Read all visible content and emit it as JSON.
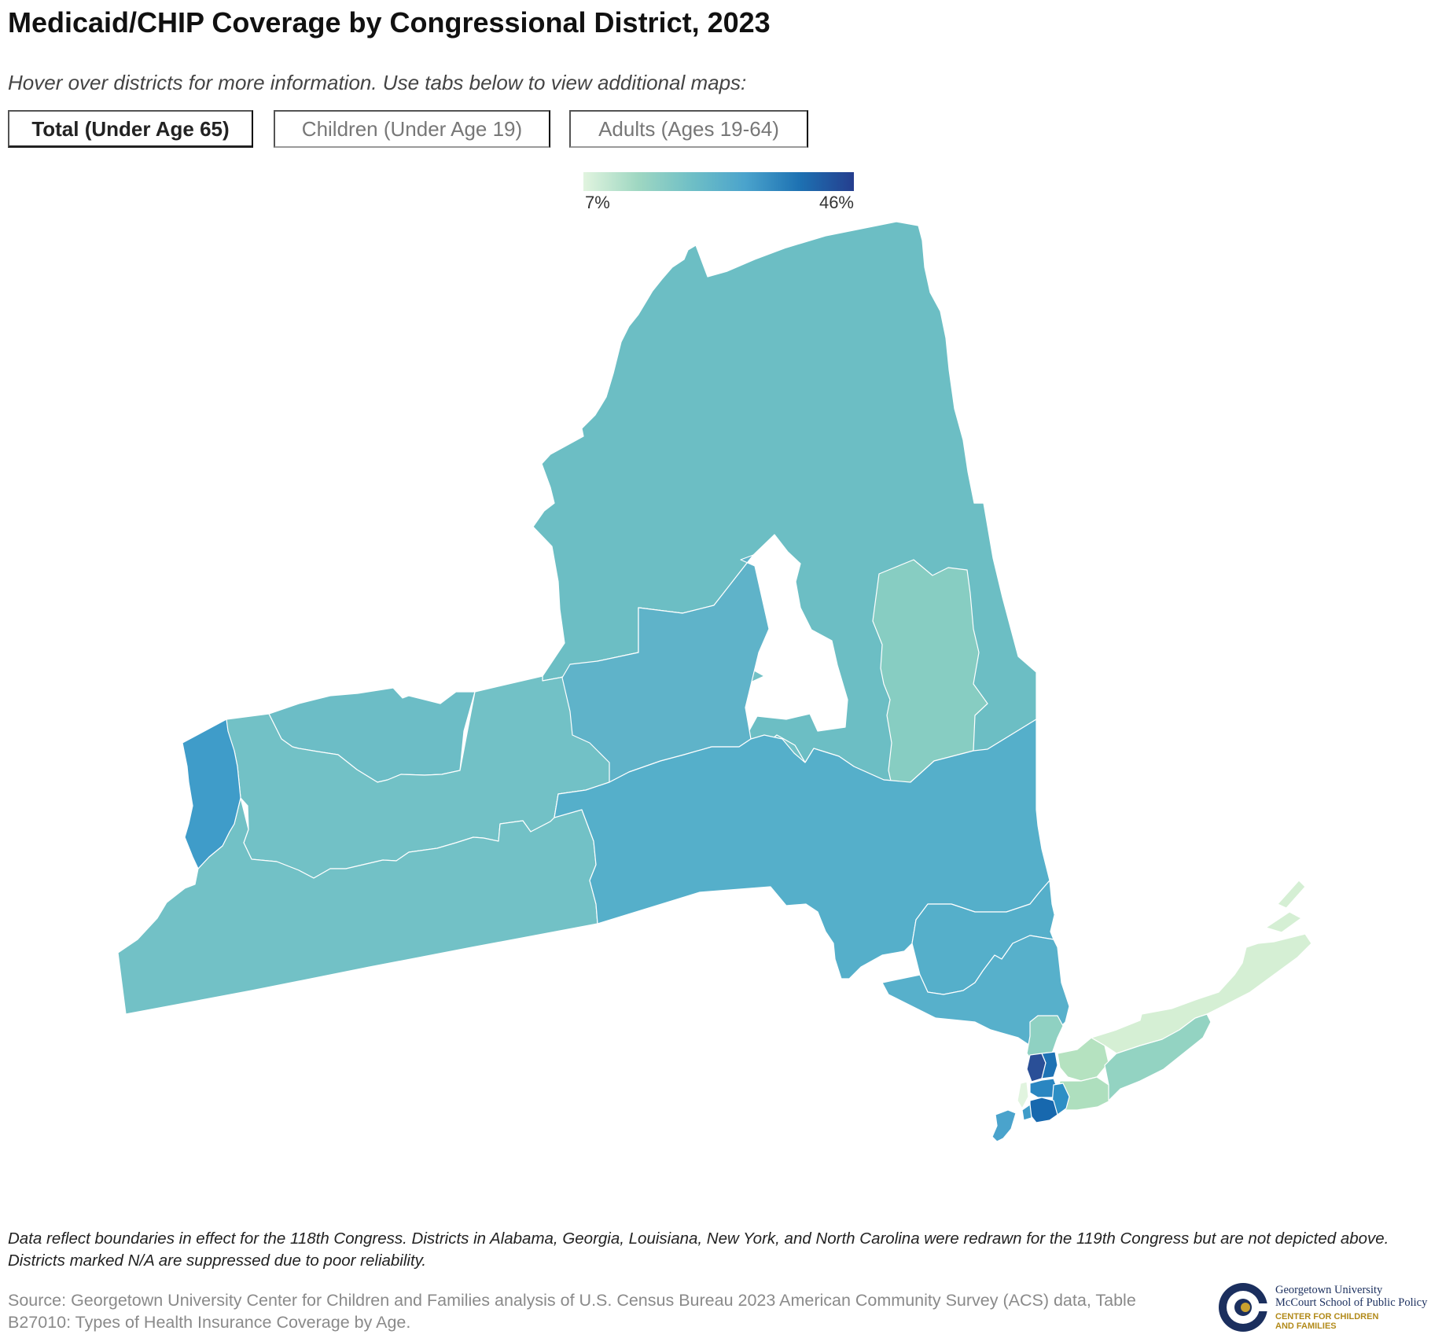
{
  "header": {
    "title": "Medicaid/CHIP Coverage by Congressional District, 2023",
    "subtitle": "Hover over districts for more information. Use tabs below to view additional maps:"
  },
  "tabs": [
    {
      "label": "Total (Under Age 65)",
      "active": true
    },
    {
      "label": "Children (Under Age 19)",
      "active": false
    },
    {
      "label": "Adults (Ages 19-64)",
      "active": false
    }
  ],
  "legend": {
    "min_label": "7%",
    "max_label": "46%",
    "colors": [
      "#e1f4df",
      "#9fd7c2",
      "#6fbfc6",
      "#4aa3cc",
      "#1d71b2",
      "#253e8e"
    ]
  },
  "map": {
    "region": "New York",
    "district_colors": {
      "north_country": "#6cbec4",
      "western_ny": "#72c1c6",
      "rochester": "#6cbdc6",
      "niagara": "#72c1c6",
      "buffalo": "#3f9cc9",
      "central_ny": "#5fb3c9",
      "southern_tier": "#55afca",
      "capital_region": "#87cdc2",
      "hudson_valley": "#55afca",
      "lower_hudson": "#57b0cb",
      "westchester": "#8fd1c2",
      "nassau_north": "#b5e2c0",
      "nassau_south": "#aedfbe",
      "suffolk_central": "#93d3c2",
      "suffolk_east": "#d5efd4",
      "bronx": "#2a4f97",
      "bronx_upper": "#1e72b4",
      "manhattan_upper": "#2a86c1",
      "manhattan": "#e1f4df",
      "queens": "#2d8fc5",
      "brooklyn": "#1768ae",
      "brooklyn_central": "#3f9cc9",
      "staten_island": "#4aa3cc"
    }
  },
  "footer": {
    "note": "Data reflect boundaries in effect for the 118th Congress. Districts in Alabama, Georgia, Louisiana, New York, and North Carolina were redrawn for the 119th Congress but are not depicted above. Districts marked N/A are suppressed due to poor reliability.",
    "source": "Source: Georgetown University Center for Children and Families analysis of U.S. Census Bureau 2023 American Community Survey (ACS) data, Table B27010: Types of Health Insurance Coverage by Age.",
    "logo": {
      "line1": "Georgetown University",
      "line2": "McCourt School of Public Policy",
      "line3": "CENTER FOR CHILDREN",
      "line4": "AND FAMILIES"
    }
  }
}
